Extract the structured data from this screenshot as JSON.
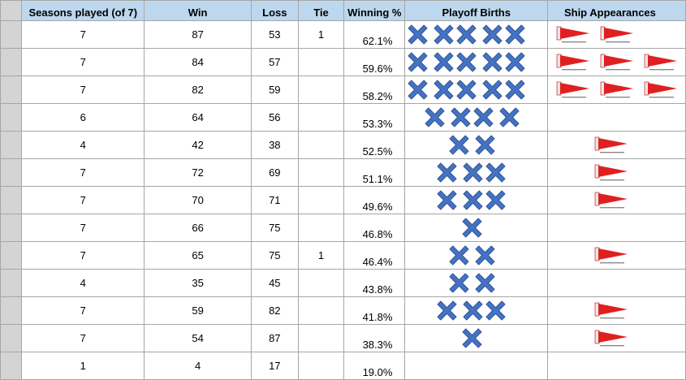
{
  "headers": {
    "seasons": "Seasons played (of 7)",
    "win": "Win",
    "loss": "Loss",
    "tie": "Tie",
    "winning_pct": "Winning %",
    "playoff": "Playoff Births",
    "ship": "Ship Appearances"
  },
  "colors": {
    "header_bg": "#bdd7ee",
    "row_header_bg": "#d4d4d4",
    "x_icon_fill": "#4472c4",
    "pennant_fill": "#e02020"
  },
  "icons": {
    "playoff": "x-mark-icon",
    "ship": "pennant-icon"
  },
  "rows": [
    {
      "seasons": "7",
      "win": "87",
      "loss": "53",
      "tie": "1",
      "pct": "62.1%",
      "playoffs": 5,
      "ships": 2
    },
    {
      "seasons": "7",
      "win": "84",
      "loss": "57",
      "tie": "",
      "pct": "59.6%",
      "playoffs": 5,
      "ships": 3
    },
    {
      "seasons": "7",
      "win": "82",
      "loss": "59",
      "tie": "",
      "pct": "58.2%",
      "playoffs": 5,
      "ships": 3
    },
    {
      "seasons": "6",
      "win": "64",
      "loss": "56",
      "tie": "",
      "pct": "53.3%",
      "playoffs": 4,
      "ships": 0
    },
    {
      "seasons": "4",
      "win": "42",
      "loss": "38",
      "tie": "",
      "pct": "52.5%",
      "playoffs": 2,
      "ships": 1
    },
    {
      "seasons": "7",
      "win": "72",
      "loss": "69",
      "tie": "",
      "pct": "51.1%",
      "playoffs": 3,
      "ships": 1
    },
    {
      "seasons": "7",
      "win": "70",
      "loss": "71",
      "tie": "",
      "pct": "49.6%",
      "playoffs": 3,
      "ships": 1
    },
    {
      "seasons": "7",
      "win": "66",
      "loss": "75",
      "tie": "",
      "pct": "46.8%",
      "playoffs": 1,
      "ships": 0
    },
    {
      "seasons": "7",
      "win": "65",
      "loss": "75",
      "tie": "1",
      "pct": "46.4%",
      "playoffs": 2,
      "ships": 1
    },
    {
      "seasons": "4",
      "win": "35",
      "loss": "45",
      "tie": "",
      "pct": "43.8%",
      "playoffs": 2,
      "ships": 0
    },
    {
      "seasons": "7",
      "win": "59",
      "loss": "82",
      "tie": "",
      "pct": "41.8%",
      "playoffs": 3,
      "ships": 1
    },
    {
      "seasons": "7",
      "win": "54",
      "loss": "87",
      "tie": "",
      "pct": "38.3%",
      "playoffs": 1,
      "ships": 1
    },
    {
      "seasons": "1",
      "win": "4",
      "loss": "17",
      "tie": "",
      "pct": "19.0%",
      "playoffs": 0,
      "ships": 0
    }
  ]
}
